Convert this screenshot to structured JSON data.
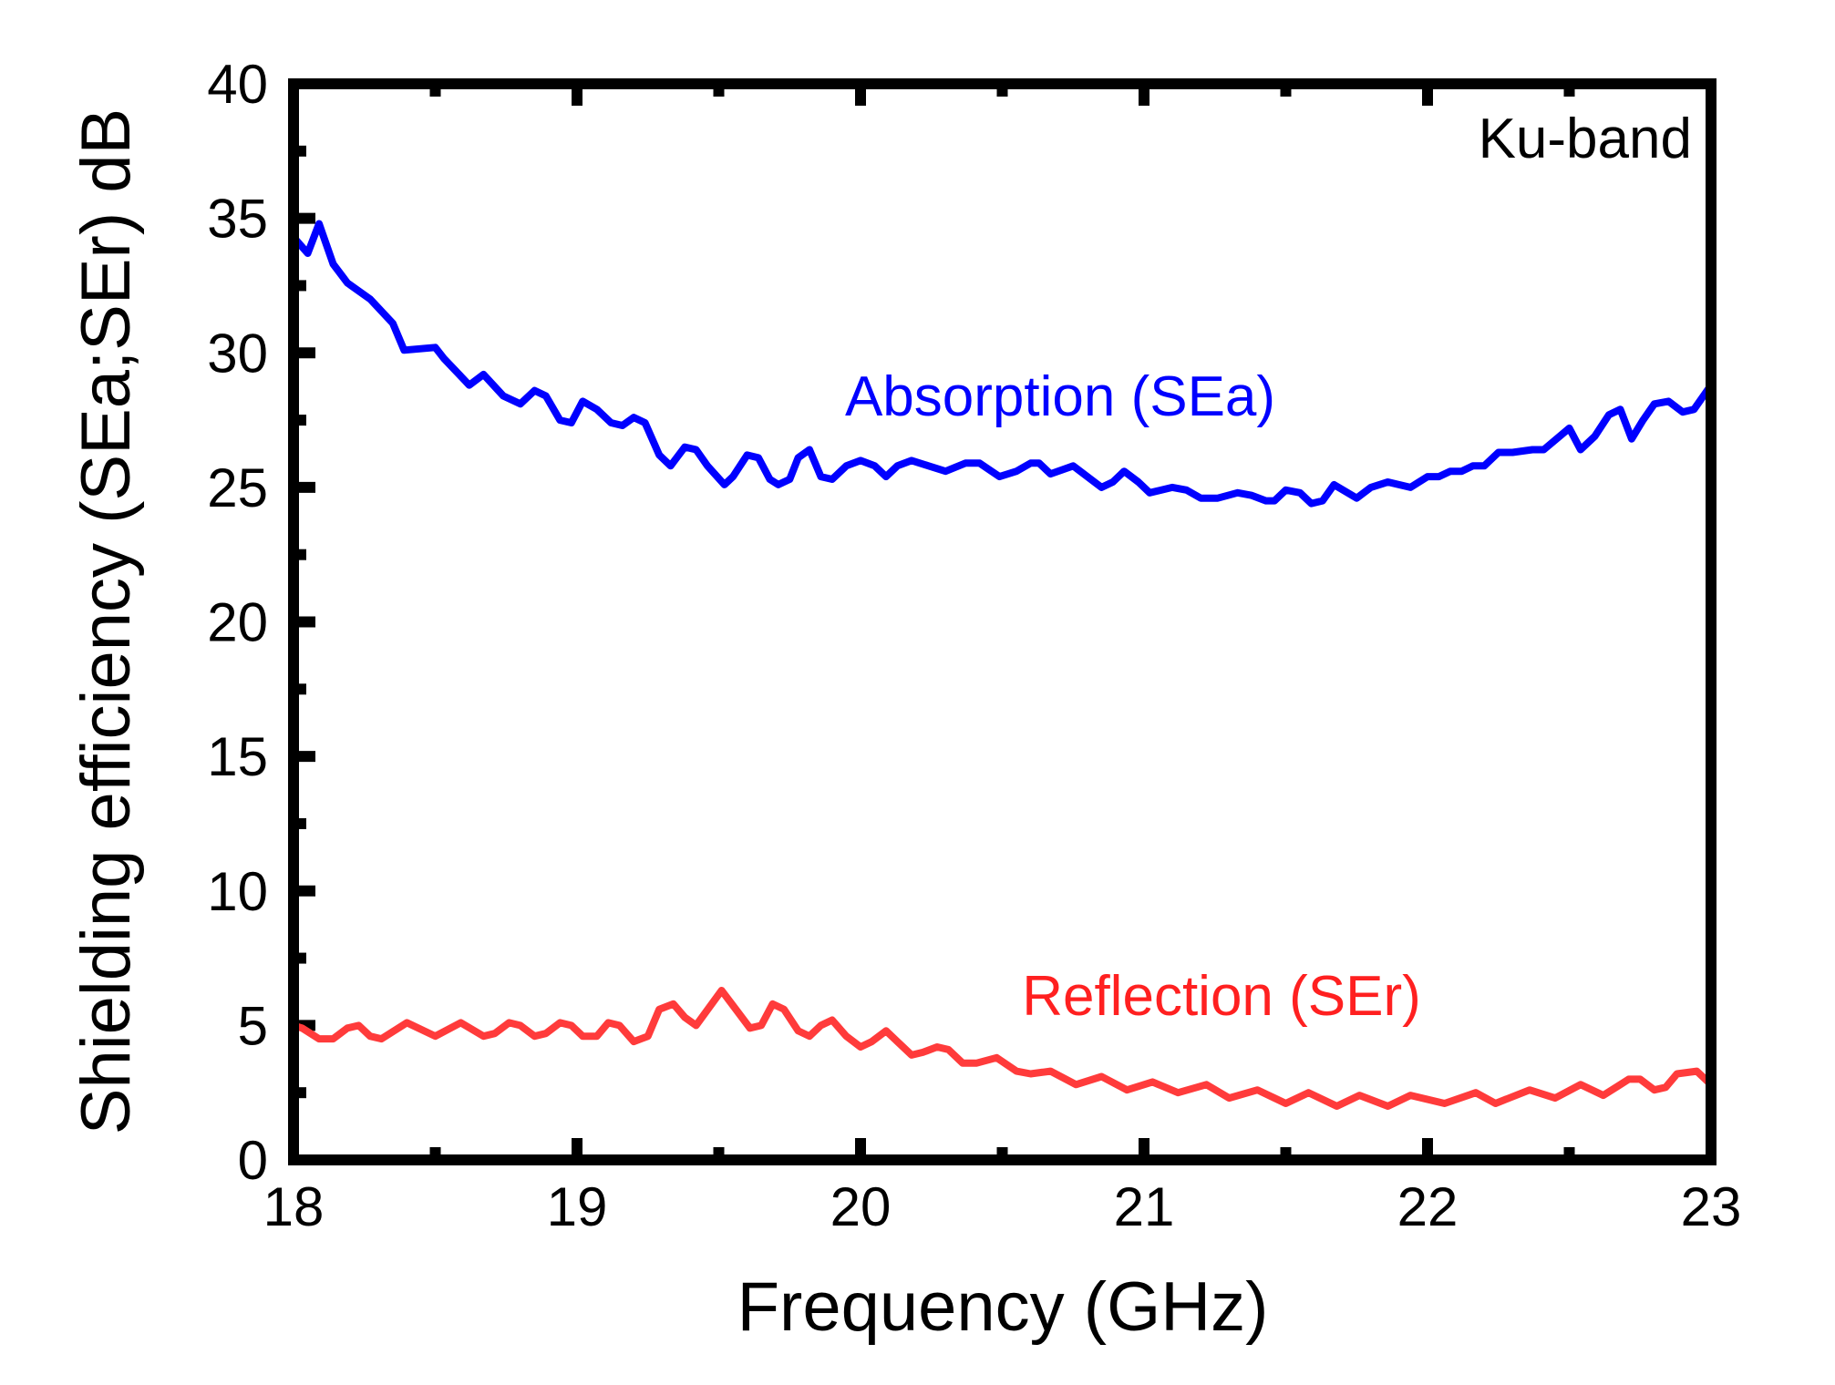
{
  "chart_data": {
    "type": "line",
    "title": "",
    "xlabel": "Frequency (GHz)",
    "ylabel": "Shielding efficiency (SEa;SEr) dB",
    "xlim": [
      18,
      23
    ],
    "ylim": [
      0,
      40
    ],
    "xticks": [
      "18",
      "19",
      "20",
      "21",
      "22",
      "23"
    ],
    "yticks": [
      "0",
      "5",
      "10",
      "15",
      "20",
      "25",
      "30",
      "35",
      "40"
    ],
    "grid": false,
    "annotations": {
      "band": "Ku-band"
    },
    "series": [
      {
        "name": "Absorption (SEa)",
        "color": "#0000ff",
        "x": [
          18.0,
          18.05,
          18.09,
          18.14,
          18.19,
          18.27,
          18.35,
          18.39,
          18.5,
          18.53,
          18.62,
          18.67,
          18.74,
          18.8,
          18.85,
          18.89,
          18.94,
          18.98,
          19.02,
          19.07,
          19.12,
          19.16,
          19.2,
          19.24,
          19.29,
          19.33,
          19.38,
          19.42,
          19.46,
          19.52,
          19.55,
          19.6,
          19.64,
          19.68,
          19.71,
          19.75,
          19.78,
          19.82,
          19.86,
          19.9,
          19.95,
          20.0,
          20.05,
          20.09,
          20.13,
          20.18,
          20.24,
          20.3,
          20.37,
          20.42,
          20.49,
          20.55,
          20.6,
          20.63,
          20.67,
          20.75,
          20.85,
          20.89,
          20.93,
          20.98,
          21.02,
          21.1,
          21.15,
          21.2,
          21.26,
          21.33,
          21.38,
          21.43,
          21.46,
          21.5,
          21.55,
          21.59,
          21.63,
          21.67,
          21.75,
          21.8,
          21.86,
          21.94,
          22.0,
          22.04,
          22.08,
          22.12,
          22.16,
          22.2,
          22.25,
          22.3,
          22.37,
          22.41,
          22.5,
          22.54,
          22.59,
          22.64,
          22.68,
          22.72,
          22.76,
          22.8,
          22.85,
          22.9,
          22.94,
          23.0
        ],
        "y": [
          34.3,
          33.7,
          34.8,
          33.3,
          32.6,
          32.0,
          31.1,
          30.1,
          30.2,
          29.8,
          28.8,
          29.2,
          28.4,
          28.1,
          28.6,
          28.4,
          27.5,
          27.4,
          28.2,
          27.9,
          27.4,
          27.3,
          27.6,
          27.4,
          26.2,
          25.8,
          26.5,
          26.4,
          25.8,
          25.1,
          25.4,
          26.2,
          26.1,
          25.3,
          25.1,
          25.3,
          26.1,
          26.4,
          25.4,
          25.3,
          25.8,
          26.0,
          25.8,
          25.4,
          25.8,
          26.0,
          25.8,
          25.6,
          25.9,
          25.9,
          25.4,
          25.6,
          25.9,
          25.9,
          25.5,
          25.8,
          25.0,
          25.2,
          25.6,
          25.2,
          24.8,
          25.0,
          24.9,
          24.6,
          24.6,
          24.8,
          24.7,
          24.5,
          24.5,
          24.9,
          24.8,
          24.4,
          24.5,
          25.1,
          24.6,
          25.0,
          25.2,
          25.0,
          25.4,
          25.4,
          25.6,
          25.6,
          25.8,
          25.8,
          26.3,
          26.3,
          26.4,
          26.4,
          27.2,
          26.4,
          26.9,
          27.7,
          27.9,
          26.8,
          27.5,
          28.1,
          28.2,
          27.8,
          27.9,
          28.8
        ]
      },
      {
        "name": "Reflection (SEr)",
        "color": "#ff3b3b",
        "x": [
          18.0,
          18.03,
          18.09,
          18.14,
          18.19,
          18.23,
          18.27,
          18.31,
          18.4,
          18.5,
          18.59,
          18.67,
          18.71,
          18.76,
          18.8,
          18.85,
          18.89,
          18.94,
          18.98,
          19.02,
          19.07,
          19.11,
          19.15,
          19.2,
          19.25,
          19.29,
          19.34,
          19.38,
          19.42,
          19.51,
          19.56,
          19.61,
          19.65,
          19.69,
          19.73,
          19.78,
          19.82,
          19.86,
          19.9,
          19.95,
          20.0,
          20.04,
          20.09,
          20.13,
          20.18,
          20.22,
          20.27,
          20.31,
          20.36,
          20.41,
          20.48,
          20.55,
          20.6,
          20.67,
          20.76,
          20.85,
          20.94,
          21.03,
          21.12,
          21.22,
          21.3,
          21.4,
          21.5,
          21.58,
          21.68,
          21.76,
          21.86,
          21.94,
          22.06,
          22.17,
          22.24,
          22.36,
          22.45,
          22.54,
          22.62,
          22.71,
          22.75,
          22.8,
          22.84,
          22.88,
          22.95,
          23.0
        ],
        "y": [
          5.0,
          4.9,
          4.5,
          4.5,
          4.9,
          5.0,
          4.6,
          4.5,
          5.1,
          4.6,
          5.1,
          4.6,
          4.7,
          5.1,
          5.0,
          4.6,
          4.7,
          5.1,
          5.0,
          4.6,
          4.6,
          5.1,
          5.0,
          4.4,
          4.6,
          5.6,
          5.8,
          5.3,
          5.0,
          6.3,
          5.6,
          4.9,
          5.0,
          5.8,
          5.6,
          4.8,
          4.6,
          5.0,
          5.2,
          4.6,
          4.2,
          4.4,
          4.8,
          4.4,
          3.9,
          4.0,
          4.2,
          4.1,
          3.6,
          3.6,
          3.8,
          3.3,
          3.2,
          3.3,
          2.8,
          3.1,
          2.6,
          2.9,
          2.5,
          2.8,
          2.3,
          2.6,
          2.1,
          2.5,
          2.0,
          2.4,
          2.0,
          2.4,
          2.1,
          2.5,
          2.1,
          2.6,
          2.3,
          2.8,
          2.4,
          3.0,
          3.0,
          2.6,
          2.7,
          3.2,
          3.3,
          2.8
        ]
      }
    ]
  }
}
